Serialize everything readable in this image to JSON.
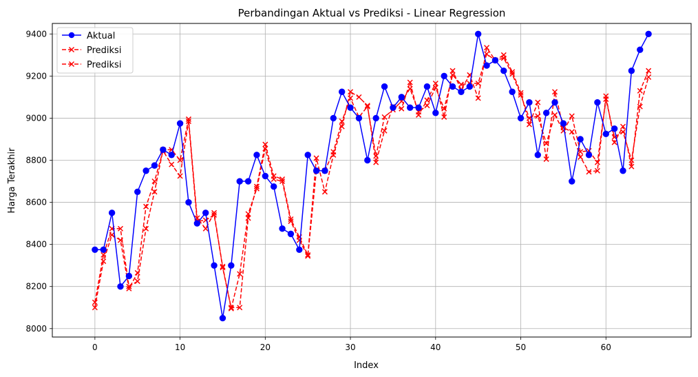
{
  "chart_data": {
    "type": "line",
    "title": "Perbandingan Aktual vs Prediksi - Linear Regression",
    "xlabel": "Index",
    "ylabel": "Harga Terakhir",
    "xlim": [
      -5,
      70
    ],
    "ylim": [
      7960,
      9450
    ],
    "xticks": [
      0,
      10,
      20,
      30,
      40,
      50,
      60
    ],
    "yticks": [
      8000,
      8200,
      8400,
      8600,
      8800,
      9000,
      9200,
      9400
    ],
    "grid": true,
    "legend_position": "top-left",
    "series": [
      {
        "name": "Aktual",
        "color": "#0000ff",
        "marker": "circle",
        "line_style": "solid",
        "values": [
          8375,
          8375,
          8550,
          8200,
          8250,
          8650,
          8750,
          8775,
          8850,
          8825,
          8975,
          8600,
          8500,
          8550,
          8300,
          8050,
          8300,
          8700,
          8700,
          8825,
          8725,
          8675,
          8475,
          8450,
          8375,
          8825,
          8750,
          8750,
          9000,
          9125,
          9050,
          9000,
          8800,
          9000,
          9150,
          9050,
          9100,
          9050,
          9050,
          9150,
          9025,
          9200,
          9150,
          9125,
          9150,
          9400,
          9250,
          9275,
          9225,
          9125,
          9000,
          9075,
          8825,
          9025,
          9075,
          8975,
          8700,
          8900,
          8825,
          9075,
          8925,
          8950,
          8750,
          9225,
          9325,
          9400
        ]
      },
      {
        "name": "Prediksi",
        "color": "#ff0000",
        "marker": "x",
        "line_style": "dashed",
        "values": [
          8125,
          8350,
          8475,
          8475,
          8200,
          8225,
          8475,
          8650,
          8850,
          8850,
          8800,
          8995,
          8525,
          8475,
          8550,
          8290,
          8100,
          8100,
          8525,
          8675,
          8875,
          8725,
          8710,
          8520,
          8435,
          8350,
          8810,
          8650,
          8825,
          8960,
          9125,
          9100,
          9060,
          8790,
          8940,
          9055,
          9045,
          9170,
          9015,
          9085,
          9165,
          9005,
          9225,
          9135,
          9205,
          9095,
          9335,
          9275,
          9300,
          9220,
          9120,
          8970,
          9075,
          8805,
          9125,
          8955,
          8935,
          8815,
          8745,
          8750,
          9105,
          8885,
          8960,
          8770,
          9130,
          9225
        ]
      },
      {
        "name": "Prediksi",
        "color": "#ff0000",
        "marker": "x",
        "line_style": "dashed",
        "values": [
          8100,
          8320,
          8445,
          8420,
          8190,
          8265,
          8580,
          8700,
          8845,
          8780,
          8725,
          8985,
          8510,
          8515,
          8540,
          8295,
          8095,
          8260,
          8545,
          8665,
          8855,
          8710,
          8700,
          8510,
          8420,
          8345,
          8750,
          8750,
          8840,
          8985,
          9095,
          9005,
          9055,
          8820,
          9005,
          9040,
          9080,
          9140,
          9030,
          9060,
          9145,
          9045,
          9205,
          9160,
          9165,
          9165,
          9305,
          9275,
          9285,
          9210,
          9110,
          9000,
          9010,
          8880,
          9015,
          8940,
          9010,
          8840,
          8845,
          8790,
          9090,
          8910,
          8935,
          8800,
          9055,
          9195
        ]
      }
    ]
  }
}
